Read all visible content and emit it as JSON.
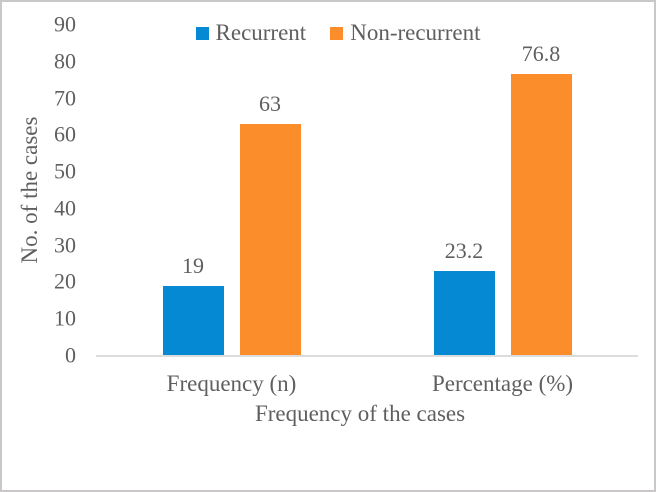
{
  "chart_data": {
    "type": "bar",
    "categories": [
      "Frequency (n)",
      "Percentage (%)"
    ],
    "series": [
      {
        "name": "Recurrent",
        "color": "#0589D3",
        "values": [
          19,
          23.2
        ]
      },
      {
        "name": "Non-recurrent",
        "color": "#FC8D2B",
        "values": [
          63,
          76.8
        ]
      }
    ],
    "title": "",
    "xlabel": "Frequency of the cases",
    "ylabel": "No. of the cases",
    "ylim": [
      0,
      90
    ],
    "ytick_step": 10,
    "grid": "off",
    "legend_position": "top-center",
    "data_labels": "on",
    "text_color": "#5f5f5f",
    "axis_line_color": "#dcdcdc",
    "background_color": "#ffffff"
  }
}
